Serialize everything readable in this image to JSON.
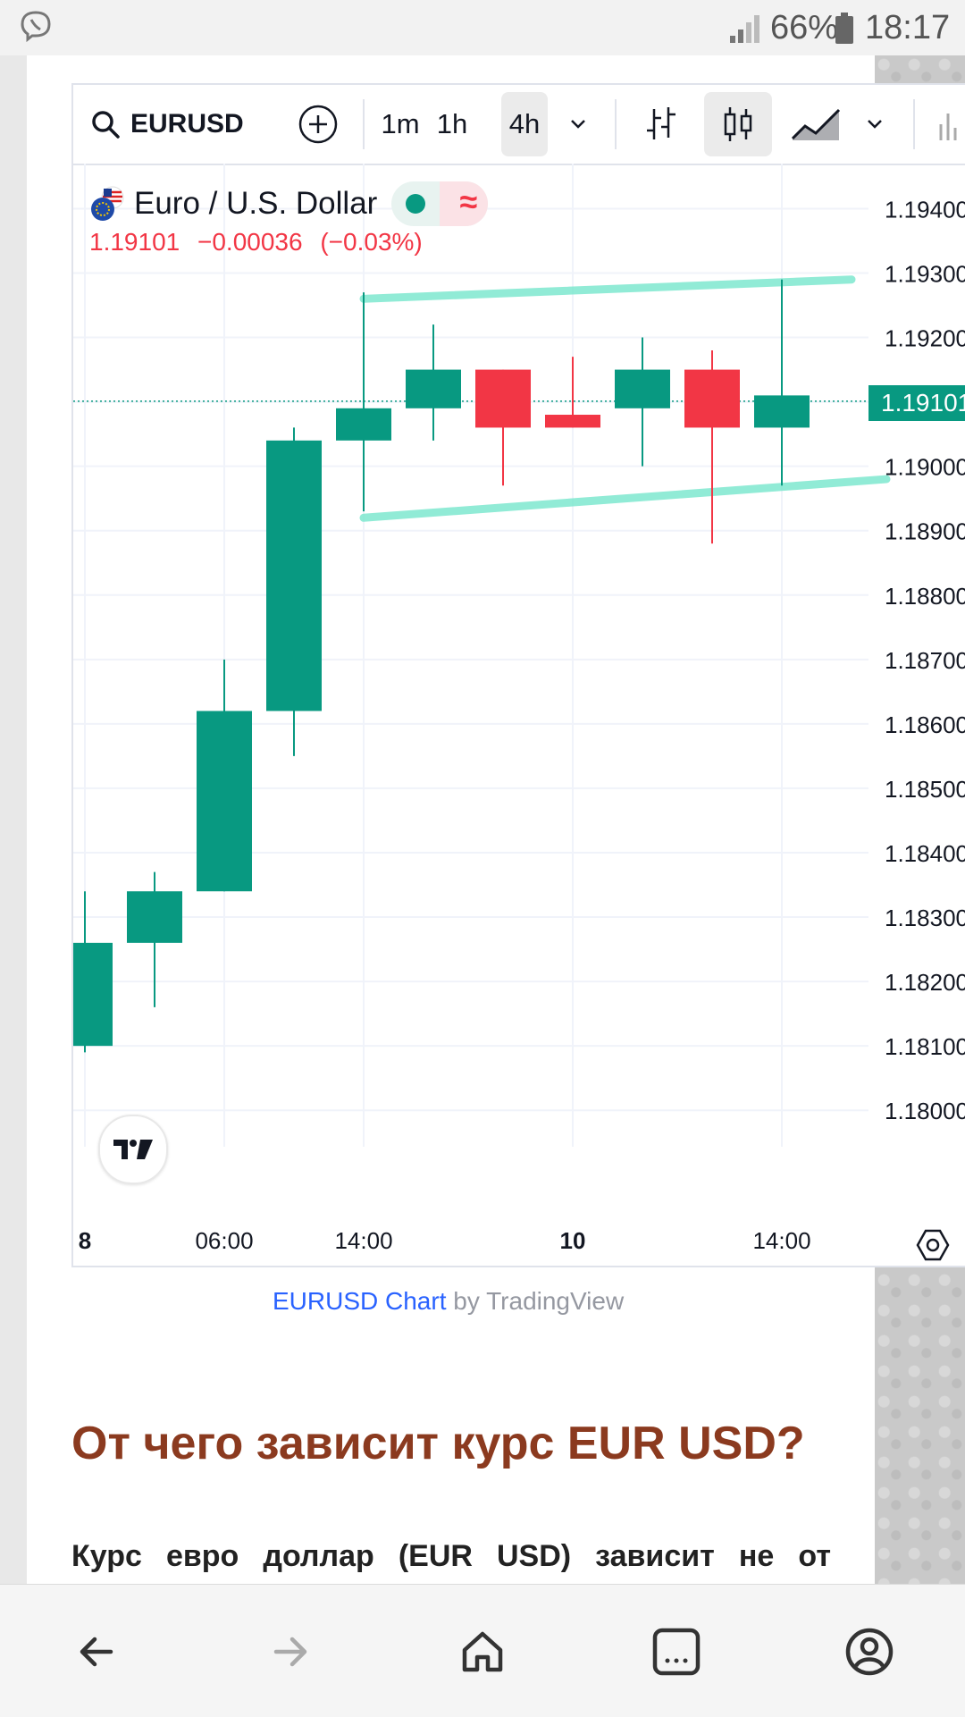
{
  "status_bar": {
    "battery": "66%",
    "time": "18:17"
  },
  "toolbar": {
    "symbol": "EURUSD",
    "intervals": [
      "1m",
      "1h",
      "4h"
    ],
    "active_interval": "4h"
  },
  "legend": {
    "title": "Euro / U.S. Dollar",
    "price": "1.19101",
    "change": "−0.00036",
    "change_pct": "(−0.03%)"
  },
  "price_tag": "1.19101",
  "colors": {
    "up": "#089981",
    "down": "#f23645",
    "drawing": "#7ee8cf",
    "heading": "#8b3a1f"
  },
  "chart_data": {
    "type": "candlestick",
    "x_labels": [
      {
        "index": 0,
        "label": "8",
        "bold": true
      },
      {
        "index": 2,
        "label": "06:00",
        "bold": false
      },
      {
        "index": 4,
        "label": "14:00",
        "bold": false
      },
      {
        "index": 7,
        "label": "10",
        "bold": true
      },
      {
        "index": 10,
        "label": "14:00",
        "bold": false
      }
    ],
    "y_ticks": [
      "1.19400",
      "1.19300",
      "1.19200",
      "1.19000",
      "1.18900",
      "1.18800",
      "1.18700",
      "1.18600",
      "1.18500",
      "1.18400",
      "1.18300",
      "1.18200",
      "1.18100",
      "1.18000"
    ],
    "ylim": [
      1.18,
      1.194
    ],
    "candles": [
      {
        "o": 1.181,
        "h": 1.1834,
        "l": 1.1809,
        "c": 1.1826
      },
      {
        "o": 1.1826,
        "h": 1.1837,
        "l": 1.1816,
        "c": 1.1834
      },
      {
        "o": 1.1834,
        "h": 1.187,
        "l": 1.1834,
        "c": 1.1862
      },
      {
        "o": 1.1862,
        "h": 1.1906,
        "l": 1.1855,
        "c": 1.1904
      },
      {
        "o": 1.1904,
        "h": 1.1927,
        "l": 1.1893,
        "c": 1.1909
      },
      {
        "o": 1.1909,
        "h": 1.1922,
        "l": 1.1904,
        "c": 1.1915
      },
      {
        "o": 1.1915,
        "h": 1.1915,
        "l": 1.1897,
        "c": 1.1906
      },
      {
        "o": 1.1908,
        "h": 1.1917,
        "l": 1.1906,
        "c": 1.1906
      },
      {
        "o": 1.1909,
        "h": 1.192,
        "l": 1.19,
        "c": 1.1915
      },
      {
        "o": 1.1915,
        "h": 1.1918,
        "l": 1.1888,
        "c": 1.1906
      },
      {
        "o": 1.1906,
        "h": 1.1929,
        "l": 1.1897,
        "c": 1.1911
      }
    ],
    "current_price": 1.19101,
    "drawings": [
      {
        "from": [
          4,
          1.1926
        ],
        "to": [
          11,
          1.1929
        ]
      },
      {
        "from": [
          4,
          1.1892
        ],
        "to": [
          11.5,
          1.1898
        ]
      }
    ]
  },
  "attribution": {
    "link": "EURUSD Chart",
    "suffix": " by TradingView"
  },
  "article": {
    "heading": "От чего зависит курс EUR USD?",
    "paragraph_words": [
      "Курс",
      "евро",
      "доллар",
      "(EUR",
      "USD)",
      "зависит",
      "не",
      "от"
    ]
  }
}
